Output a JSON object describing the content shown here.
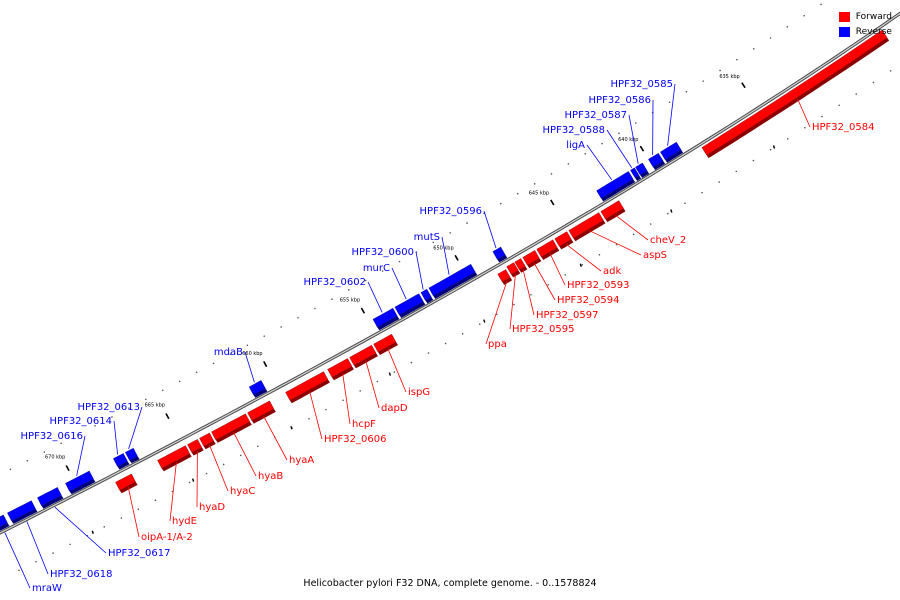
{
  "legend": {
    "forward": {
      "label": "Forward",
      "color": "#ff0000"
    },
    "reverse": {
      "label": "Reverse",
      "color": "#0000ff"
    }
  },
  "caption": "Helicobacter pylori F32 DNA, complete genome. - 0..1578824",
  "tick_labels": [
    "635 kbp",
    "640 kbp",
    "645 kbp",
    "650 kbp",
    "655 kbp",
    "660 kbp",
    "665 kbp",
    "670 kbp"
  ],
  "genes": {
    "forward": [
      "HPF32_0584",
      "cheV_2",
      "aspS",
      "adk",
      "HPF32_0593",
      "HPF32_0594",
      "HPF32_0597",
      "HPF32_0595",
      "ppa",
      "ispG",
      "dapD",
      "hcpF",
      "HPF32_0606",
      "hyaA",
      "hyaB",
      "hyaC",
      "hyaD",
      "hydE",
      "oipA-1/A-2"
    ],
    "reverse": [
      "HPF32_0585",
      "HPF32_0586",
      "HPF32_0587",
      "HPF32_0588",
      "ligA",
      "HPF32_0596",
      "mutS",
      "HPF32_0600",
      "murC",
      "HPF32_0602",
      "mdaB",
      "HPF32_0613",
      "HPF32_0614",
      "HPF32_0616",
      "HPF32_0617",
      "HPF32_0618",
      "mraW"
    ]
  }
}
